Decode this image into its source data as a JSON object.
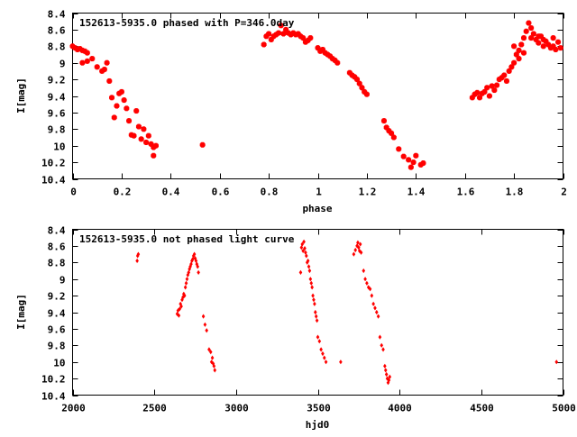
{
  "chart_data": [
    {
      "type": "scatter",
      "title": "152613-5935.0 phased with P=346.0day",
      "xlabel": "phase",
      "ylabel": "I[mag]",
      "xlim": [
        0,
        2
      ],
      "ylim": [
        10.4,
        8.4
      ],
      "y_inverted": true,
      "grid": false,
      "marker_color": "#ff0000",
      "xticks": [
        "0",
        "0.2",
        "0.4",
        "0.6",
        "0.8",
        "1",
        "1.2",
        "1.4",
        "1.6",
        "1.8",
        "2"
      ],
      "xtick_values": [
        0,
        0.2,
        0.4,
        0.6,
        0.8,
        1.0,
        1.2,
        1.4,
        1.6,
        1.8,
        2.0
      ],
      "yticks": [
        "8.4",
        "8.6",
        "8.8",
        "9",
        "9.2",
        "9.4",
        "9.6",
        "9.8",
        "10",
        "10.2",
        "10.4"
      ],
      "ytick_values": [
        8.4,
        8.6,
        8.8,
        9.0,
        9.2,
        9.4,
        9.6,
        9.8,
        10.0,
        10.2,
        10.4
      ],
      "points": [
        [
          0.0,
          8.8
        ],
        [
          0.01,
          8.82
        ],
        [
          0.02,
          8.84
        ],
        [
          0.03,
          8.83
        ],
        [
          0.04,
          8.85
        ],
        [
          0.05,
          8.86
        ],
        [
          0.06,
          8.88
        ],
        [
          0.04,
          9.0
        ],
        [
          0.06,
          8.98
        ],
        [
          0.08,
          8.95
        ],
        [
          0.1,
          9.05
        ],
        [
          0.12,
          9.1
        ],
        [
          0.13,
          9.08
        ],
        [
          0.14,
          9.0
        ],
        [
          0.15,
          9.22
        ],
        [
          0.16,
          9.42
        ],
        [
          0.17,
          9.66
        ],
        [
          0.18,
          9.52
        ],
        [
          0.19,
          9.37
        ],
        [
          0.2,
          9.35
        ],
        [
          0.21,
          9.45
        ],
        [
          0.22,
          9.55
        ],
        [
          0.23,
          9.7
        ],
        [
          0.24,
          9.87
        ],
        [
          0.25,
          9.88
        ],
        [
          0.26,
          9.58
        ],
        [
          0.27,
          9.77
        ],
        [
          0.28,
          9.92
        ],
        [
          0.29,
          9.8
        ],
        [
          0.3,
          9.96
        ],
        [
          0.31,
          9.88
        ],
        [
          0.32,
          9.98
        ],
        [
          0.33,
          10.02
        ],
        [
          0.33,
          10.12
        ],
        [
          0.34,
          10.0
        ],
        [
          0.53,
          9.99
        ],
        [
          0.78,
          8.78
        ],
        [
          0.79,
          8.68
        ],
        [
          0.8,
          8.65
        ],
        [
          0.81,
          8.72
        ],
        [
          0.82,
          8.68
        ],
        [
          0.83,
          8.66
        ],
        [
          0.84,
          8.64
        ],
        [
          0.85,
          8.55
        ],
        [
          0.86,
          8.65
        ],
        [
          0.87,
          8.6
        ],
        [
          0.88,
          8.64
        ],
        [
          0.89,
          8.66
        ],
        [
          0.9,
          8.64
        ],
        [
          0.91,
          8.66
        ],
        [
          0.92,
          8.65
        ],
        [
          0.93,
          8.68
        ],
        [
          0.94,
          8.7
        ],
        [
          0.95,
          8.75
        ],
        [
          0.96,
          8.73
        ],
        [
          0.97,
          8.7
        ],
        [
          1.0,
          8.82
        ],
        [
          1.01,
          8.86
        ],
        [
          1.02,
          8.84
        ],
        [
          1.03,
          8.88
        ],
        [
          1.04,
          8.9
        ],
        [
          1.05,
          8.92
        ],
        [
          1.06,
          8.95
        ],
        [
          1.07,
          8.97
        ],
        [
          1.08,
          9.0
        ],
        [
          1.13,
          9.12
        ],
        [
          1.14,
          9.15
        ],
        [
          1.15,
          9.17
        ],
        [
          1.16,
          9.2
        ],
        [
          1.17,
          9.25
        ],
        [
          1.18,
          9.3
        ],
        [
          1.19,
          9.35
        ],
        [
          1.2,
          9.38
        ],
        [
          1.27,
          9.7
        ],
        [
          1.28,
          9.78
        ],
        [
          1.29,
          9.82
        ],
        [
          1.3,
          9.85
        ],
        [
          1.31,
          9.9
        ],
        [
          1.33,
          10.04
        ],
        [
          1.35,
          10.13
        ],
        [
          1.37,
          10.17
        ],
        [
          1.38,
          10.26
        ],
        [
          1.39,
          10.2
        ],
        [
          1.4,
          10.12
        ],
        [
          1.42,
          10.23
        ],
        [
          1.43,
          10.21
        ],
        [
          1.63,
          9.42
        ],
        [
          1.64,
          9.38
        ],
        [
          1.65,
          9.36
        ],
        [
          1.66,
          9.42
        ],
        [
          1.67,
          9.37
        ],
        [
          1.68,
          9.35
        ],
        [
          1.69,
          9.3
        ],
        [
          1.7,
          9.4
        ],
        [
          1.71,
          9.28
        ],
        [
          1.72,
          9.33
        ],
        [
          1.73,
          9.27
        ],
        [
          1.74,
          9.2
        ],
        [
          1.75,
          9.18
        ],
        [
          1.76,
          9.15
        ],
        [
          1.77,
          9.22
        ],
        [
          1.78,
          9.1
        ],
        [
          1.79,
          9.05
        ],
        [
          1.8,
          9.0
        ],
        [
          1.81,
          8.9
        ],
        [
          1.82,
          8.85
        ],
        [
          1.83,
          8.78
        ],
        [
          1.84,
          8.7
        ],
        [
          1.85,
          8.62
        ],
        [
          1.86,
          8.52
        ],
        [
          1.87,
          8.58
        ],
        [
          1.88,
          8.65
        ],
        [
          1.89,
          8.72
        ],
        [
          1.9,
          8.76
        ],
        [
          1.91,
          8.68
        ],
        [
          1.92,
          8.8
        ],
        [
          1.93,
          8.74
        ],
        [
          1.94,
          8.78
        ],
        [
          1.95,
          8.82
        ],
        [
          1.96,
          8.8
        ],
        [
          1.97,
          8.84
        ],
        [
          1.98,
          8.75
        ],
        [
          1.99,
          8.82
        ],
        [
          1.8,
          8.8
        ],
        [
          1.82,
          8.95
        ],
        [
          1.84,
          8.88
        ],
        [
          1.87,
          8.7
        ],
        [
          1.9,
          8.68
        ],
        [
          1.92,
          8.72
        ],
        [
          1.96,
          8.7
        ]
      ]
    },
    {
      "type": "scatter",
      "title": "152613-5935.0 not phased light curve",
      "xlabel": "hjd0",
      "ylabel": "I[mag]",
      "xlim": [
        2000,
        5000
      ],
      "ylim": [
        10.4,
        8.4
      ],
      "y_inverted": true,
      "grid": false,
      "marker_color": "#ff0000",
      "xticks": [
        "2000",
        "2500",
        "3000",
        "3500",
        "4000",
        "4500",
        "5000"
      ],
      "xtick_values": [
        2000,
        2500,
        3000,
        3500,
        4000,
        4500,
        5000
      ],
      "yticks": [
        "8.4",
        "8.6",
        "8.8",
        "9",
        "9.2",
        "9.4",
        "9.6",
        "9.8",
        "10",
        "10.2",
        "10.4"
      ],
      "ytick_values": [
        8.4,
        8.6,
        8.8,
        9.0,
        9.2,
        9.4,
        9.6,
        9.8,
        10.0,
        10.2,
        10.4
      ],
      "points": [
        [
          2395,
          8.78
        ],
        [
          2398,
          8.72
        ],
        [
          2402,
          8.7
        ],
        [
          2640,
          9.42
        ],
        [
          2645,
          9.38
        ],
        [
          2650,
          9.44
        ],
        [
          2655,
          9.36
        ],
        [
          2660,
          9.3
        ],
        [
          2665,
          9.33
        ],
        [
          2670,
          9.25
        ],
        [
          2675,
          9.22
        ],
        [
          2680,
          9.18
        ],
        [
          2685,
          9.2
        ],
        [
          2690,
          9.1
        ],
        [
          2695,
          9.05
        ],
        [
          2700,
          9.0
        ],
        [
          2705,
          8.95
        ],
        [
          2710,
          8.92
        ],
        [
          2715,
          8.88
        ],
        [
          2720,
          8.85
        ],
        [
          2725,
          8.82
        ],
        [
          2730,
          8.78
        ],
        [
          2735,
          8.76
        ],
        [
          2740,
          8.72
        ],
        [
          2745,
          8.7
        ],
        [
          2750,
          8.75
        ],
        [
          2755,
          8.78
        ],
        [
          2760,
          8.82
        ],
        [
          2765,
          8.85
        ],
        [
          2770,
          8.92
        ],
        [
          2800,
          9.45
        ],
        [
          2810,
          9.55
        ],
        [
          2820,
          9.62
        ],
        [
          2835,
          9.85
        ],
        [
          2845,
          9.88
        ],
        [
          2850,
          10.0
        ],
        [
          2855,
          9.95
        ],
        [
          2860,
          10.02
        ],
        [
          2865,
          10.05
        ],
        [
          2870,
          10.1
        ],
        [
          3395,
          8.92
        ],
        [
          3400,
          8.62
        ],
        [
          3405,
          8.58
        ],
        [
          3410,
          8.66
        ],
        [
          3415,
          8.55
        ],
        [
          3420,
          8.63
        ],
        [
          3425,
          8.68
        ],
        [
          3430,
          8.72
        ],
        [
          3435,
          8.8
        ],
        [
          3440,
          8.78
        ],
        [
          3445,
          8.85
        ],
        [
          3450,
          8.9
        ],
        [
          3455,
          9.0
        ],
        [
          3460,
          9.05
        ],
        [
          3465,
          9.1
        ],
        [
          3470,
          9.2
        ],
        [
          3475,
          9.25
        ],
        [
          3480,
          9.3
        ],
        [
          3485,
          9.4
        ],
        [
          3490,
          9.45
        ],
        [
          3495,
          9.5
        ],
        [
          3500,
          9.7
        ],
        [
          3510,
          9.75
        ],
        [
          3520,
          9.85
        ],
        [
          3530,
          9.9
        ],
        [
          3540,
          9.95
        ],
        [
          3550,
          10.0
        ],
        [
          3640,
          10.0
        ],
        [
          3720,
          8.7
        ],
        [
          3730,
          8.65
        ],
        [
          3740,
          8.6
        ],
        [
          3745,
          8.56
        ],
        [
          3750,
          8.62
        ],
        [
          3755,
          8.66
        ],
        [
          3760,
          8.58
        ],
        [
          3765,
          8.68
        ],
        [
          3780,
          8.9
        ],
        [
          3790,
          9.0
        ],
        [
          3800,
          9.05
        ],
        [
          3810,
          9.1
        ],
        [
          3820,
          9.12
        ],
        [
          3830,
          9.2
        ],
        [
          3840,
          9.3
        ],
        [
          3850,
          9.35
        ],
        [
          3860,
          9.4
        ],
        [
          3870,
          9.45
        ],
        [
          3880,
          9.7
        ],
        [
          3890,
          9.8
        ],
        [
          3900,
          9.85
        ],
        [
          3910,
          10.05
        ],
        [
          3915,
          10.1
        ],
        [
          3920,
          10.15
        ],
        [
          3925,
          10.2
        ],
        [
          3930,
          10.25
        ],
        [
          3935,
          10.22
        ],
        [
          3940,
          10.18
        ],
        [
          4960,
          10.0
        ]
      ]
    }
  ]
}
